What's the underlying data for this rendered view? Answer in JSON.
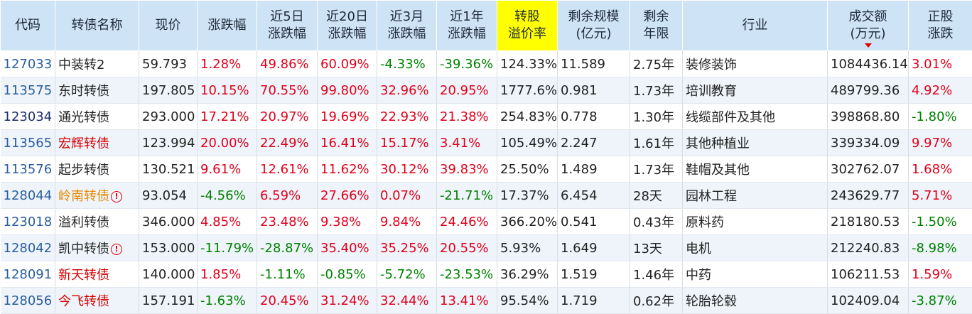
{
  "headers": [
    {
      "key": "code",
      "label": "代码"
    },
    {
      "key": "name",
      "label": "转债名称"
    },
    {
      "key": "price",
      "label": "现价"
    },
    {
      "key": "chg",
      "label": "涨跌幅"
    },
    {
      "key": "chg5d",
      "label": "近5日\n涨跌幅"
    },
    {
      "key": "chg20d",
      "label": "近20日\n涨跌幅"
    },
    {
      "key": "chg3m",
      "label": "近3月\n涨跌幅"
    },
    {
      "key": "chg1y",
      "label": "近1年\n涨跌幅"
    },
    {
      "key": "premium",
      "label": "转股\n溢价率",
      "highlight": true
    },
    {
      "key": "size",
      "label": "剩余规模\n(亿元)"
    },
    {
      "key": "years",
      "label": "剩余\n年限"
    },
    {
      "key": "industry",
      "label": "行业"
    },
    {
      "key": "volume",
      "label": "成交额\n(万元)",
      "sorted": "desc"
    },
    {
      "key": "stockchg",
      "label": "正股\n涨跌"
    }
  ],
  "rows": [
    {
      "code": "127033",
      "name": "中装转2",
      "name_color": "normal",
      "warn": false,
      "price": "59.793",
      "chg": "1.28%",
      "chg5d": "49.86%",
      "chg20d": "60.09%",
      "chg3m": "-4.33%",
      "chg1y": "-39.36%",
      "premium": "124.33%",
      "size": "11.589",
      "years": "2.75年",
      "industry": "装修装饰",
      "volume": "1084436.14",
      "stockchg": "3.01%"
    },
    {
      "code": "113575",
      "name": "东时转债",
      "name_color": "normal",
      "warn": false,
      "price": "197.805",
      "chg": "10.15%",
      "chg5d": "70.55%",
      "chg20d": "99.80%",
      "chg3m": "32.96%",
      "chg1y": "20.95%",
      "premium": "1777.6%",
      "size": "0.981",
      "years": "1.73年",
      "industry": "培训教育",
      "volume": "489799.36",
      "stockchg": "4.92%"
    },
    {
      "code": "123034",
      "name": "通光转债",
      "name_color": "normal",
      "warn": false,
      "price": "293.000",
      "chg": "17.21%",
      "chg5d": "20.97%",
      "chg20d": "19.69%",
      "chg3m": "22.93%",
      "chg1y": "21.38%",
      "premium": "254.83%",
      "size": "0.778",
      "years": "1.30年",
      "industry": "线缆部件及其他",
      "volume": "398868.80",
      "stockchg": "-1.80%"
    },
    {
      "code": "113565",
      "name": "宏辉转债",
      "name_color": "red",
      "warn": false,
      "price": "123.994",
      "chg": "20.00%",
      "chg5d": "22.49%",
      "chg20d": "16.41%",
      "chg3m": "15.17%",
      "chg1y": "3.41%",
      "premium": "105.49%",
      "size": "2.247",
      "years": "1.61年",
      "industry": "其他种植业",
      "volume": "339334.09",
      "stockchg": "9.97%"
    },
    {
      "code": "113576",
      "name": "起步转债",
      "name_color": "normal",
      "warn": false,
      "price": "130.521",
      "chg": "9.61%",
      "chg5d": "12.61%",
      "chg20d": "11.62%",
      "chg3m": "30.12%",
      "chg1y": "39.83%",
      "premium": "25.50%",
      "size": "1.489",
      "years": "1.73年",
      "industry": "鞋帽及其他",
      "volume": "302762.07",
      "stockchg": "1.68%"
    },
    {
      "code": "128044",
      "name": "岭南转债",
      "name_color": "orange",
      "warn": true,
      "price": "93.054",
      "chg": "-4.56%",
      "chg5d": "6.59%",
      "chg20d": "27.66%",
      "chg3m": "0.07%",
      "chg1y": "-21.71%",
      "premium": "17.37%",
      "size": "6.454",
      "years": "28天",
      "industry": "园林工程",
      "volume": "243629.77",
      "stockchg": "5.71%"
    },
    {
      "code": "123018",
      "name": "溢利转债",
      "name_color": "normal",
      "warn": false,
      "price": "346.000",
      "chg": "4.85%",
      "chg5d": "23.48%",
      "chg20d": "9.38%",
      "chg3m": "9.84%",
      "chg1y": "24.46%",
      "premium": "366.20%",
      "size": "0.541",
      "years": "0.43年",
      "industry": "原料药",
      "volume": "218180.53",
      "stockchg": "-1.50%"
    },
    {
      "code": "128042",
      "name": "凯中转债",
      "name_color": "normal",
      "warn": true,
      "price": "153.000",
      "chg": "-11.79%",
      "chg5d": "-28.87%",
      "chg20d": "35.40%",
      "chg3m": "35.25%",
      "chg1y": "20.55%",
      "premium": "5.93%",
      "size": "1.649",
      "years": "13天",
      "industry": "电机",
      "volume": "212240.83",
      "stockchg": "-8.98%"
    },
    {
      "code": "128091",
      "name": "新天转债",
      "name_color": "red",
      "warn": false,
      "price": "140.000",
      "chg": "1.85%",
      "chg5d": "-1.11%",
      "chg20d": "-0.85%",
      "chg3m": "-5.72%",
      "chg1y": "-23.53%",
      "premium": "36.29%",
      "size": "1.519",
      "years": "1.46年",
      "industry": "中药",
      "volume": "106211.53",
      "stockchg": "1.59%"
    },
    {
      "code": "128056",
      "name": "今飞转债",
      "name_color": "red",
      "warn": false,
      "price": "157.191",
      "chg": "-1.63%",
      "chg5d": "20.45%",
      "chg20d": "31.24%",
      "chg3m": "32.44%",
      "chg1y": "13.41%",
      "premium": "95.54%",
      "size": "1.719",
      "years": "0.62年",
      "industry": "轮胎轮毂",
      "volume": "102409.04",
      "stockchg": "-3.87%"
    }
  ],
  "colors": {
    "up": "#e0001b",
    "down": "#008000",
    "header_bg": "#cfe3f6",
    "highlight": "#ffff00",
    "code": "#2a5d9f"
  },
  "icons": {
    "warn": "exclamation-circle-icon",
    "sort": "sort-desc-arrow-icon"
  }
}
